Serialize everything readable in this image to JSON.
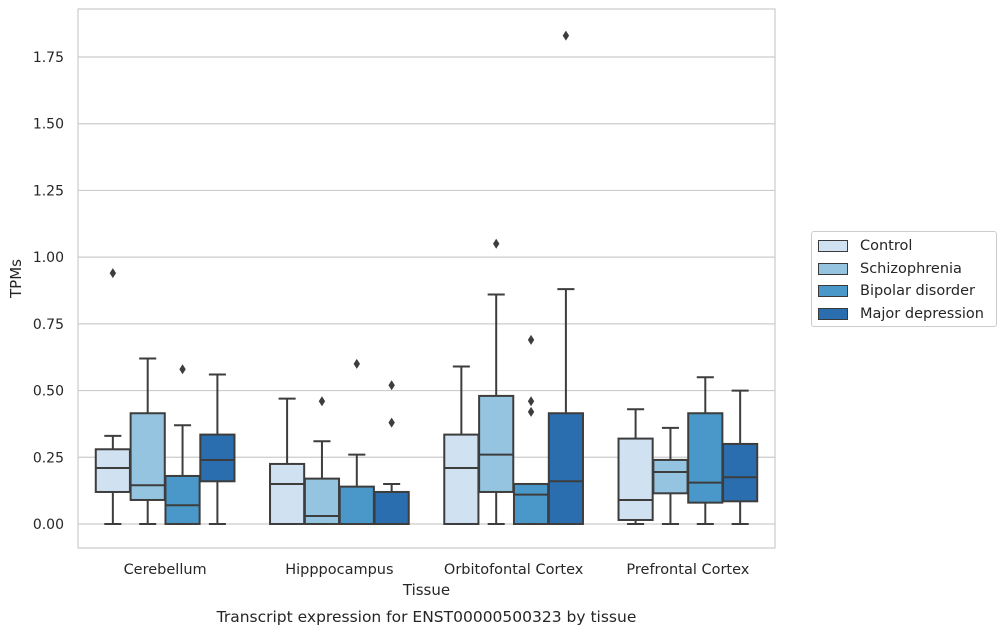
{
  "chart_data": {
    "type": "box",
    "title": "Transcript expression for ENST00000500323 by tissue",
    "xlabel": "Tissue",
    "ylabel": "TPMs",
    "ylim": [
      -0.09,
      1.93
    ],
    "yticks": [
      "0.00",
      "0.25",
      "0.50",
      "0.75",
      "1.00",
      "1.25",
      "1.50",
      "1.75"
    ],
    "grid": "horizontal",
    "legend_position": "right",
    "categories": [
      "Cerebellum",
      "Hipppocampus",
      "Orbitofontal Cortex",
      "Prefrontal Cortex"
    ],
    "series": [
      {
        "name": "Control",
        "color": "#d0e1f2",
        "boxes": [
          {
            "whislo": 0.0,
            "q1": 0.12,
            "med": 0.21,
            "q3": 0.28,
            "whishi": 0.33,
            "fliers": [
              0.94
            ]
          },
          {
            "whislo": 0.0,
            "q1": 0.0,
            "med": 0.15,
            "q3": 0.225,
            "whishi": 0.47,
            "fliers": []
          },
          {
            "whislo": 0.0,
            "q1": 0.0,
            "med": 0.21,
            "q3": 0.335,
            "whishi": 0.59,
            "fliers": []
          },
          {
            "whislo": 0.0,
            "q1": 0.015,
            "med": 0.09,
            "q3": 0.32,
            "whishi": 0.43,
            "fliers": []
          }
        ]
      },
      {
        "name": "Schizophrenia",
        "color": "#94c4df",
        "boxes": [
          {
            "whislo": 0.0,
            "q1": 0.09,
            "med": 0.145,
            "q3": 0.415,
            "whishi": 0.62,
            "fliers": []
          },
          {
            "whislo": 0.0,
            "q1": 0.0,
            "med": 0.03,
            "q3": 0.17,
            "whishi": 0.31,
            "fliers": [
              0.46
            ]
          },
          {
            "whislo": 0.0,
            "q1": 0.12,
            "med": 0.26,
            "q3": 0.48,
            "whishi": 0.86,
            "fliers": [
              1.05
            ]
          },
          {
            "whislo": 0.0,
            "q1": 0.115,
            "med": 0.195,
            "q3": 0.24,
            "whishi": 0.36,
            "fliers": []
          }
        ]
      },
      {
        "name": "Bipolar disorder",
        "color": "#4a98c9",
        "boxes": [
          {
            "whislo": 0.0,
            "q1": 0.0,
            "med": 0.07,
            "q3": 0.18,
            "whishi": 0.37,
            "fliers": [
              0.58
            ]
          },
          {
            "whislo": 0.0,
            "q1": 0.0,
            "med": 0.0,
            "q3": 0.14,
            "whishi": 0.26,
            "fliers": [
              0.6
            ]
          },
          {
            "whislo": 0.0,
            "q1": 0.0,
            "med": 0.11,
            "q3": 0.15,
            "whishi": 0.15,
            "fliers": [
              0.42,
              0.46,
              0.69
            ]
          },
          {
            "whislo": 0.0,
            "q1": 0.08,
            "med": 0.155,
            "q3": 0.415,
            "whishi": 0.55,
            "fliers": []
          }
        ]
      },
      {
        "name": "Major depression",
        "color": "#2a6eb0",
        "boxes": [
          {
            "whislo": 0.0,
            "q1": 0.16,
            "med": 0.24,
            "q3": 0.335,
            "whishi": 0.56,
            "fliers": []
          },
          {
            "whislo": 0.0,
            "q1": 0.0,
            "med": 0.0,
            "q3": 0.12,
            "whishi": 0.15,
            "fliers": [
              0.38,
              0.52
            ]
          },
          {
            "whislo": 0.0,
            "q1": 0.0,
            "med": 0.16,
            "q3": 0.415,
            "whishi": 0.88,
            "fliers": [
              1.83
            ]
          },
          {
            "whislo": 0.0,
            "q1": 0.085,
            "med": 0.175,
            "q3": 0.3,
            "whishi": 0.5,
            "fliers": []
          }
        ]
      }
    ]
  }
}
